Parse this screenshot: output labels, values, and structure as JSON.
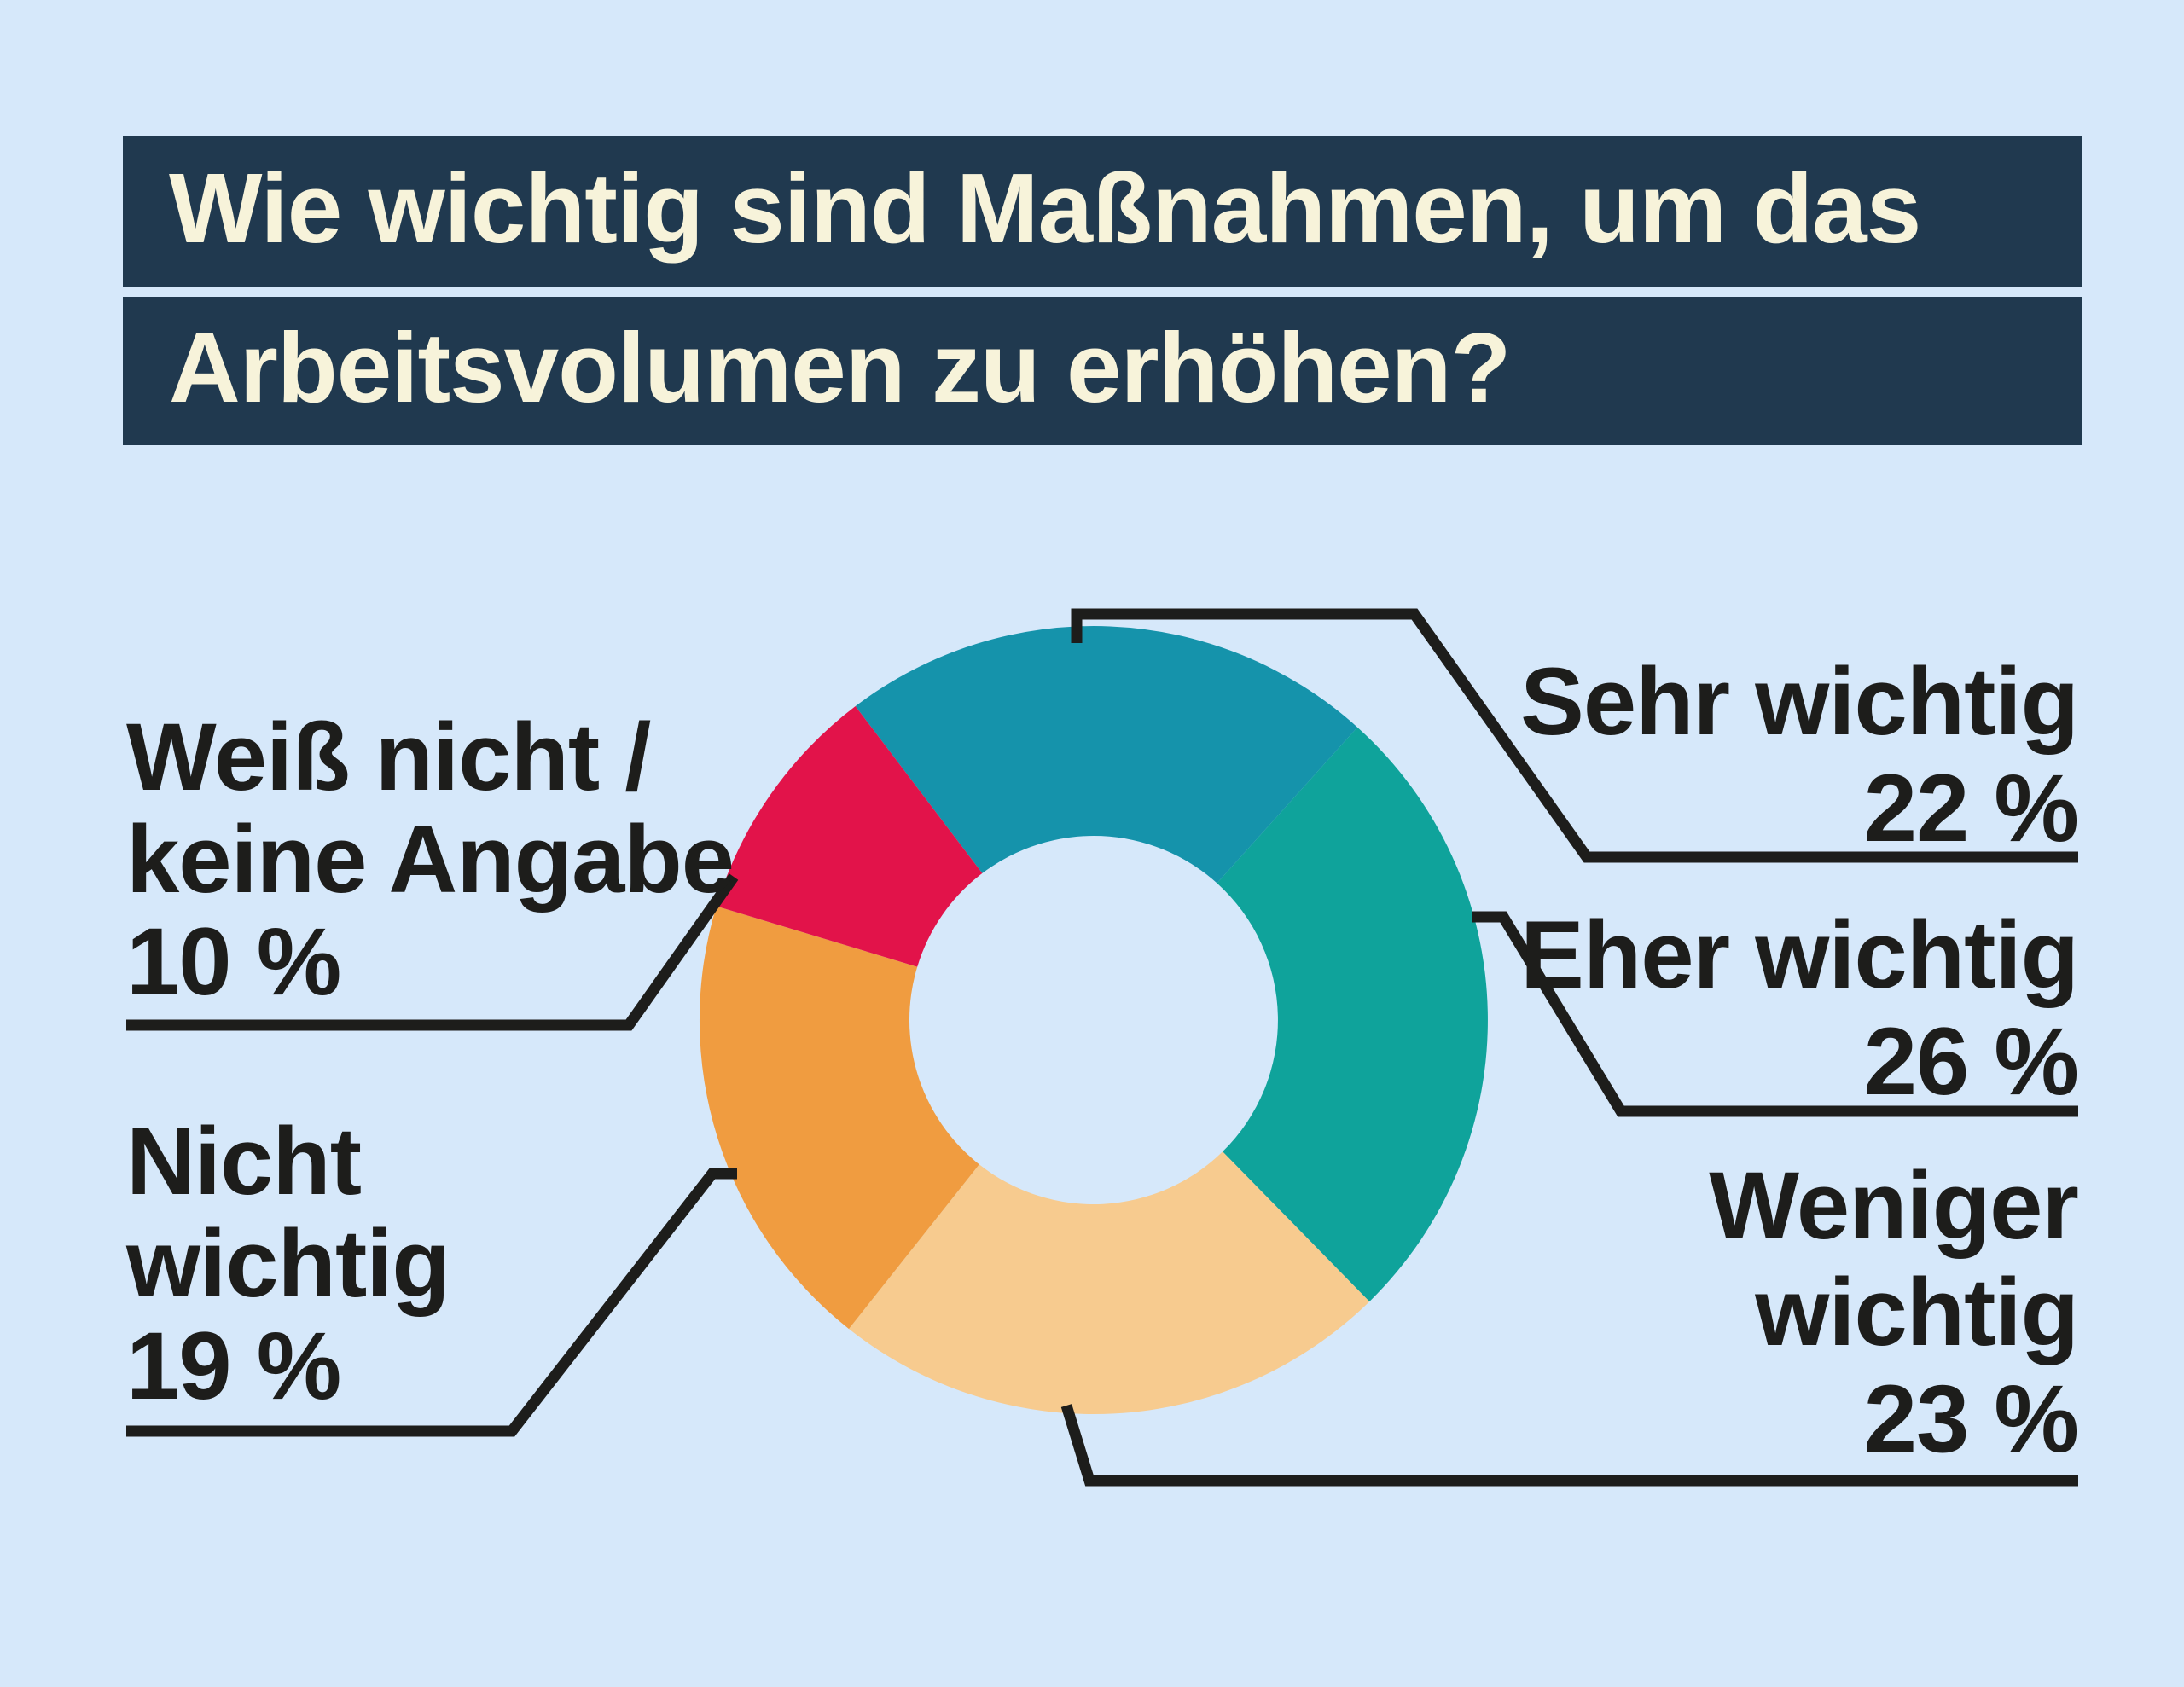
{
  "title": {
    "line1": "Wie wichtig sind Maßnahmen, um das",
    "line2": "Arbeitsvolumen zu erhöhen?"
  },
  "chart_data": {
    "type": "pie",
    "variant": "donut",
    "title": "Wie wichtig sind Maßnahmen, um das Arbeitsvolumen zu erhöhen?",
    "start_angle_deg": 322.8,
    "direction": "clockwise",
    "categories": [
      "Sehr wichtig",
      "Eher wichtig",
      "Weniger wichtig",
      "Nicht wichtig",
      "Weiß nicht / keine Angabe"
    ],
    "values": [
      22,
      26,
      23,
      19,
      10
    ],
    "unit": "%",
    "slices": [
      {
        "label": "Sehr wichtig",
        "value": 22,
        "pct_label": "22 %",
        "color": "#1593ab",
        "callout_side": "right"
      },
      {
        "label": "Eher wichtig",
        "value": 26,
        "pct_label": "26 %",
        "color": "#0fa39b",
        "callout_side": "right"
      },
      {
        "label": "Weniger wichtig",
        "value": 23,
        "pct_label": "23 %",
        "color": "#f7cb8f",
        "callout_side": "right"
      },
      {
        "label": "Nicht wichtig",
        "value": 19,
        "pct_label": "19 %",
        "color": "#f09c40",
        "callout_side": "left"
      },
      {
        "label": "Weiß nicht / keine Angabe",
        "value": 10,
        "pct_label": "10 %",
        "color": "#e2134a",
        "callout_side": "left"
      }
    ],
    "legend_position": "callout-labels"
  },
  "callouts": {
    "left": [
      {
        "lines": [
          "Weiß nicht /",
          "keine Angabe",
          "10 %"
        ]
      },
      {
        "lines": [
          "Nicht",
          "wichtig",
          "19 %"
        ]
      }
    ],
    "right": [
      {
        "lines": [
          "Sehr wichtig",
          "22 %"
        ]
      },
      {
        "lines": [
          "Eher wichtig",
          "26 %"
        ]
      },
      {
        "lines": [
          "Weniger",
          "wichtig",
          "23 %"
        ]
      }
    ]
  },
  "colors": {
    "background": "#d6e8fa",
    "title_bar": "#20394f",
    "title_text": "#f7f3da",
    "label_text": "#1d1d1b",
    "leader_line": "#1d1d1b",
    "donut_hole": "#d6e8fa"
  }
}
